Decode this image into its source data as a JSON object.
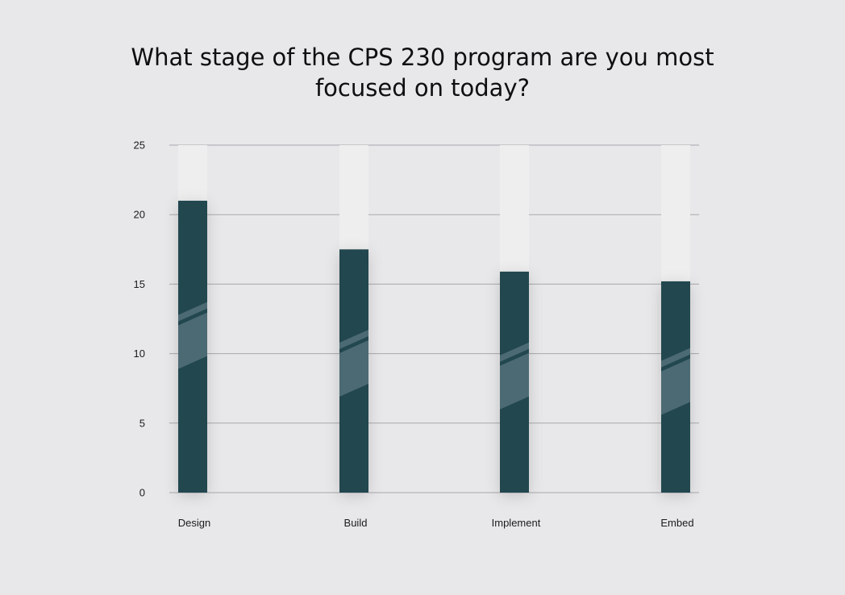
{
  "chart_data": {
    "type": "bar",
    "title": "What stage of the CPS 230 program are you most focused on today?",
    "categories": [
      "Design",
      "Build",
      "Implement",
      "Embed"
    ],
    "values": [
      21,
      17.5,
      15.9,
      15.2
    ],
    "ylim": [
      0,
      25
    ],
    "yticks": [
      0,
      5,
      10,
      15,
      20,
      25
    ],
    "grid": true,
    "colors": {
      "bar": "#234650",
      "track": "#eeeeee",
      "stripe": "#4c6a73",
      "gridline": "#a9a9ad",
      "background": "#e8e8ea"
    }
  }
}
